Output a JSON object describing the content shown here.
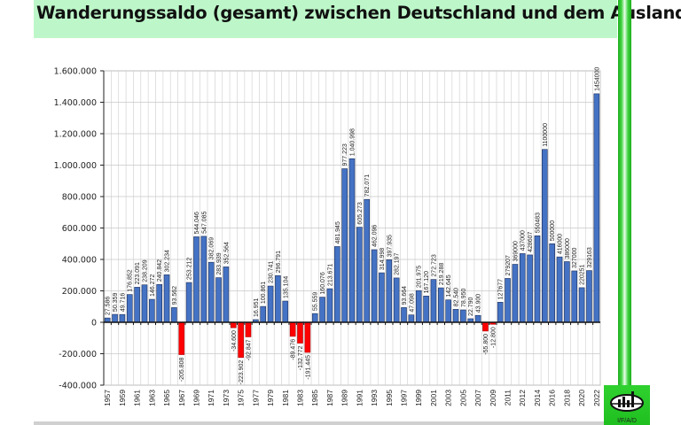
{
  "chart_data": {
    "type": "bar",
    "title": "Wanderungssaldo (gesamt) zwischen Deutschland und dem Ausland",
    "xlabel": "",
    "ylabel": "",
    "ylim": [
      -400000,
      1600000
    ],
    "yticks": [
      -400000,
      -200000,
      0,
      200000,
      400000,
      600000,
      800000,
      1000000,
      1200000,
      1400000,
      1600000
    ],
    "ytick_labels": [
      "-400.000",
      "-200.000",
      "0",
      "200.000",
      "400.000",
      "600.000",
      "800.000",
      "1.000.000",
      "1.200.000",
      "1.400.000",
      "1.600.000"
    ],
    "grid": true,
    "legend": "none",
    "categories": [
      "1957",
      "1958",
      "1959",
      "1960",
      "1961",
      "1962",
      "1963",
      "1964",
      "1965",
      "1966",
      "1967",
      "1968",
      "1969",
      "1970",
      "1971",
      "1972",
      "1973",
      "1974",
      "1975",
      "1976",
      "1977",
      "1978",
      "1979",
      "1980",
      "1981",
      "1982",
      "1983",
      "1984",
      "1985",
      "1986",
      "1987",
      "1988",
      "1989",
      "1990",
      "1991",
      "1992",
      "1993",
      "1994",
      "1995",
      "1996",
      "1997",
      "1998",
      "1999",
      "2000",
      "2001",
      "2002",
      "2003",
      "2004",
      "2005",
      "2006",
      "2007",
      "2008",
      "2009",
      "2010",
      "2011",
      "",
      "2012",
      "2013",
      "2014",
      "2015",
      "2016",
      "2017",
      "2018",
      "2019",
      "2020",
      "2021",
      "2022"
    ],
    "values": [
      27586,
      50359,
      49716,
      176852,
      223091,
      238209,
      146272,
      240842,
      302234,
      93562,
      -205808,
      253212,
      544046,
      547085,
      382069,
      283939,
      352564,
      -34600,
      -223902,
      -92847,
      16951,
      100861,
      230741,
      296791,
      135104,
      -89476,
      -132772,
      -191445,
      55559,
      160076,
      213671,
      481945,
      977223,
      1040998,
      605273,
      782071,
      462096,
      314998,
      397935,
      282197,
      93664,
      47098,
      201975,
      167120,
      272723,
      219288,
      142645,
      82540,
      78950,
      22790,
      43900,
      -55800,
      -12800,
      127677,
      279207,
      369000,
      437000,
      428607,
      550483,
      1100000,
      500000,
      416000,
      386000,
      327000,
      220251,
      329163,
      1454000
    ],
    "data_labels": [
      "27.586",
      "50.359",
      "49.716",
      "176.852",
      "223.091",
      "238.209",
      "146.272",
      "240.842",
      "302.234",
      "93.562",
      "-205.808",
      "253.212",
      "544.046",
      "547.085",
      "382.069",
      "283.939",
      "352.564",
      "-34.600",
      "-223.902",
      "-92.847",
      "16.951",
      "100.861",
      "230.741",
      "296.791",
      "135.104",
      "-89.476",
      "-132.772",
      "-191.445",
      "55.559",
      "160.076",
      "213.671",
      "481.945",
      "977.223",
      "1.040.998",
      "605.273",
      "782.071",
      "462.096",
      "314.998",
      "397.935",
      "282.197",
      "93.664",
      "47.098",
      "201.975",
      "167.120",
      "272.723",
      "219.288",
      "142.645",
      "82.540",
      "78.950",
      "22.790",
      "43.900",
      "-55.800",
      "-12.800",
      "127677",
      "279207",
      "369000",
      "437000",
      "428607",
      "550483",
      "1100000",
      "500000",
      "416000",
      "386000",
      "327000",
      "220251",
      "329163",
      "1454000"
    ],
    "colors": {
      "positive": "#4472c4",
      "negative": "#ff0000",
      "bar_border": "#1f2f55"
    }
  },
  "logo": {
    "label": "I/F/A/D",
    "icon": "bar-chart-oval-logo-icon"
  }
}
